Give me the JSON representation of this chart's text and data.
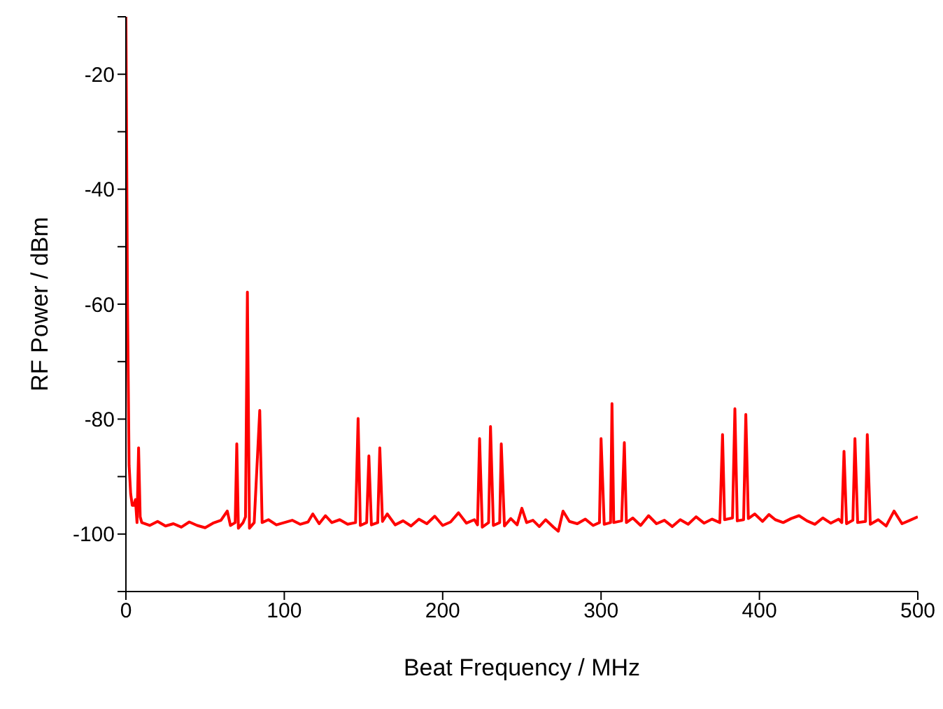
{
  "chart_data": {
    "type": "line",
    "xlabel": "Beat Frequency / MHz",
    "ylabel": "RF Power / dBm",
    "xlim": [
      0,
      500
    ],
    "xticks": [
      0,
      100,
      200,
      300,
      400,
      500
    ],
    "ylim": [
      -110,
      -10
    ],
    "yticks": [
      {
        "value": -110,
        "label": null
      },
      -100,
      {
        "value": -90,
        "label": null
      },
      -80,
      {
        "value": -70,
        "label": null
      },
      -60,
      {
        "value": -50,
        "label": null
      },
      -40,
      {
        "value": -30,
        "label": null
      },
      -20,
      {
        "value": -10,
        "label": null
      }
    ],
    "grid": false,
    "legend": false,
    "marker": "none",
    "line_style": "solid",
    "series": [
      {
        "color": "#ff0000",
        "x": [
          0,
          1,
          2,
          3,
          4,
          5,
          6,
          7,
          8,
          9,
          10,
          15,
          20,
          25,
          30,
          35,
          40,
          45,
          50,
          55,
          60,
          64,
          66,
          69,
          70,
          71,
          74,
          75.5,
          76.7,
          78,
          81,
          84.5,
          86,
          90,
          95,
          100,
          105,
          110,
          115,
          118,
          122,
          126,
          130,
          135,
          140,
          145,
          146.6,
          148,
          152,
          153.4,
          155,
          159,
          160.3,
          162,
          165,
          170,
          175,
          180,
          185,
          190,
          195,
          200,
          205,
          210,
          215,
          220,
          222,
          223.3,
          225,
          229,
          230.2,
          232,
          236,
          237,
          239,
          243,
          247,
          250,
          253,
          257,
          261,
          265,
          270,
          273,
          276,
          280,
          285,
          290,
          295,
          299,
          300,
          302,
          306,
          306.9,
          308,
          313,
          314.7,
          316,
          320,
          325,
          330,
          335,
          340,
          345,
          350,
          355,
          360,
          365,
          370,
          375,
          376.7,
          378,
          383,
          384.5,
          386,
          390,
          391.4,
          393,
          397,
          402,
          406,
          410,
          415,
          420,
          425,
          430,
          435,
          440,
          445,
          450,
          452,
          453.4,
          455,
          459,
          460.3,
          462,
          467,
          468.1,
          470,
          475,
          480,
          485,
          490,
          495,
          500
        ],
        "values": [
          -10,
          -60,
          -88,
          -93,
          -95,
          -95,
          -94,
          -98,
          -85,
          -97,
          -98,
          -98.5,
          -97.8,
          -98.6,
          -98.2,
          -98.8,
          -97.9,
          -98.5,
          -98.9,
          -98.1,
          -97.6,
          -96,
          -98.5,
          -98,
          -84.3,
          -99,
          -98,
          -97,
          -57.9,
          -99,
          -98,
          -78.5,
          -98,
          -97.5,
          -98.4,
          -98,
          -97.6,
          -98.3,
          -97.9,
          -96.5,
          -98.2,
          -96.8,
          -98,
          -97.5,
          -98.3,
          -98,
          -79.9,
          -98.5,
          -98,
          -86.4,
          -98.4,
          -98,
          -85,
          -97.8,
          -96.5,
          -98.4,
          -97.7,
          -98.6,
          -97.4,
          -98.2,
          -96.9,
          -98.5,
          -97.9,
          -96.3,
          -98.1,
          -97.5,
          -98.4,
          -83.4,
          -98.8,
          -98,
          -81.3,
          -98.5,
          -98,
          -84.3,
          -98.6,
          -97.3,
          -98.4,
          -95.5,
          -98,
          -97.6,
          -98.7,
          -97.5,
          -98.8,
          -99.5,
          -96,
          -97.8,
          -98.2,
          -97.4,
          -98.5,
          -98,
          -83.4,
          -98.3,
          -98,
          -77.3,
          -98,
          -97.7,
          -84.1,
          -98,
          -97.2,
          -98.5,
          -96.8,
          -98.2,
          -97.6,
          -98.7,
          -97.5,
          -98.3,
          -97,
          -98.1,
          -97.4,
          -98,
          -82.7,
          -97.5,
          -97.2,
          -78.2,
          -97.7,
          -97.5,
          -79.2,
          -97.3,
          -96.5,
          -97.8,
          -96.6,
          -97.5,
          -98,
          -97.3,
          -96.8,
          -97.7,
          -98.3,
          -97.2,
          -98.1,
          -97.4,
          -98,
          -85.6,
          -98.2,
          -97.6,
          -83.4,
          -98,
          -97.8,
          -82.7,
          -98.3,
          -97.5,
          -98.6,
          -96,
          -98.2,
          -97.6,
          -97
        ]
      }
    ]
  }
}
